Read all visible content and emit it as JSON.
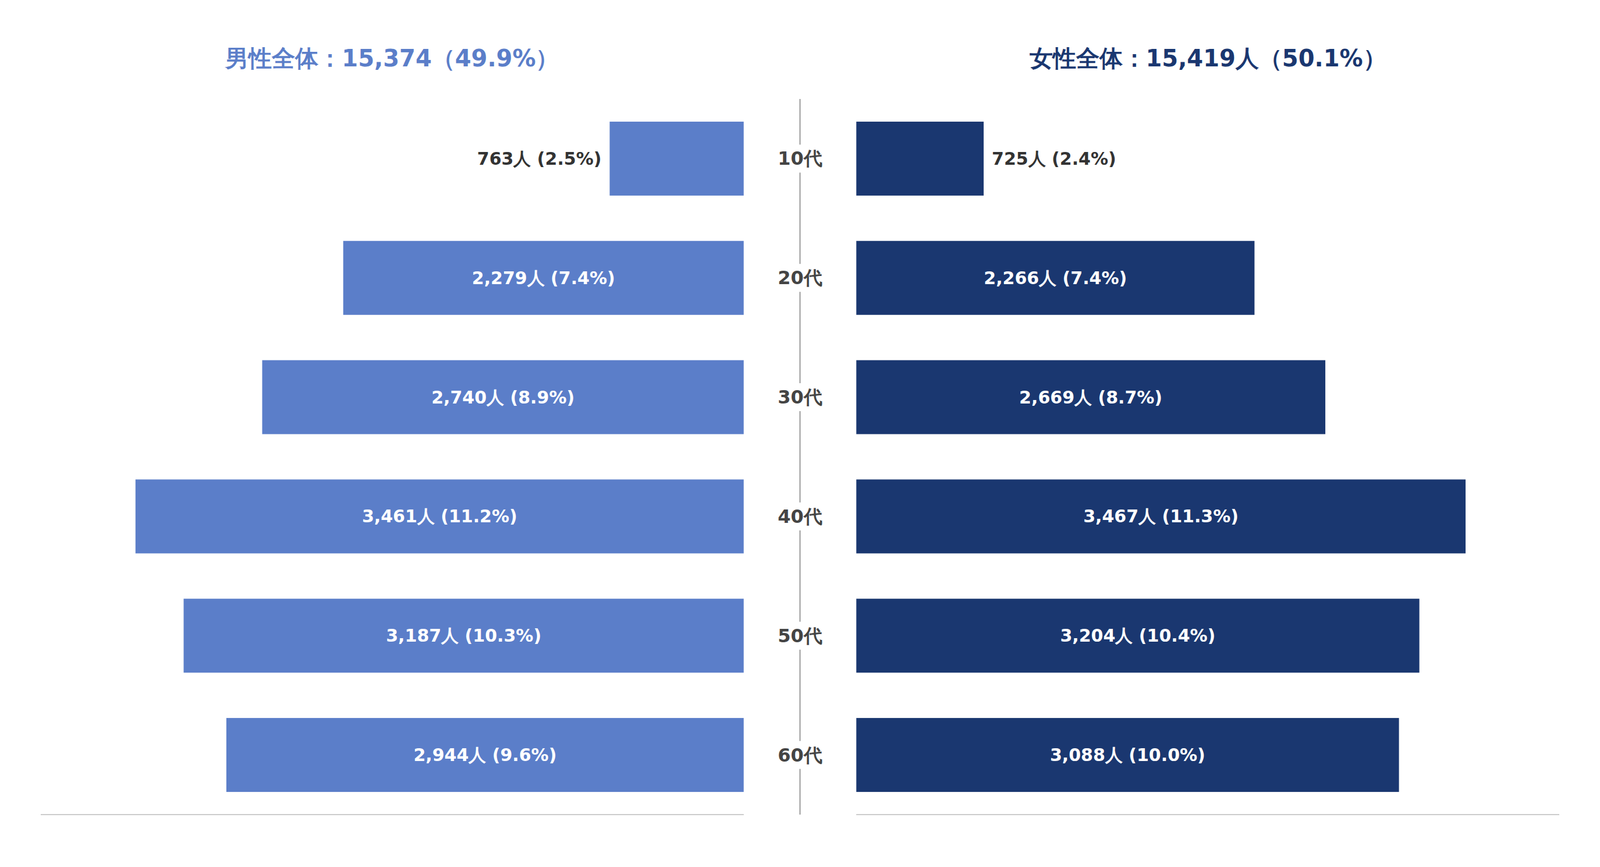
{
  "chart_data": {
    "type": "bar",
    "orientation": "horizontal",
    "categories": [
      "10代",
      "20代",
      "30代",
      "40代",
      "50代",
      "60代"
    ],
    "series": [
      {
        "name": "男性全体：15,374（49.9%）",
        "color": "#5b7ec9",
        "values": [
          763,
          2279,
          2740,
          3461,
          3187,
          2944
        ],
        "value_labels": [
          "763人 (2.5%)",
          "2,279人 (7.4%)",
          "2,740人 (8.9%)",
          "3,461人 (11.2%)",
          "3,187人 (10.3%)",
          "2,944人 (9.6%)"
        ]
      },
      {
        "name": "女性全体：15,419人（50.1%）",
        "color": "#1a3770",
        "values": [
          725,
          2266,
          2669,
          3467,
          3204,
          3088
        ],
        "value_labels": [
          "725人 (2.4%)",
          "2,266人 (7.4%)",
          "2,669人 (8.7%)",
          "3,467人 (11.3%)",
          "3,204人 (10.4%)",
          "3,088人 (10.0%)"
        ]
      }
    ],
    "xlim": [
      0,
      4000
    ],
    "data_labels": true,
    "tick_labels": "y",
    "grid": false
  }
}
